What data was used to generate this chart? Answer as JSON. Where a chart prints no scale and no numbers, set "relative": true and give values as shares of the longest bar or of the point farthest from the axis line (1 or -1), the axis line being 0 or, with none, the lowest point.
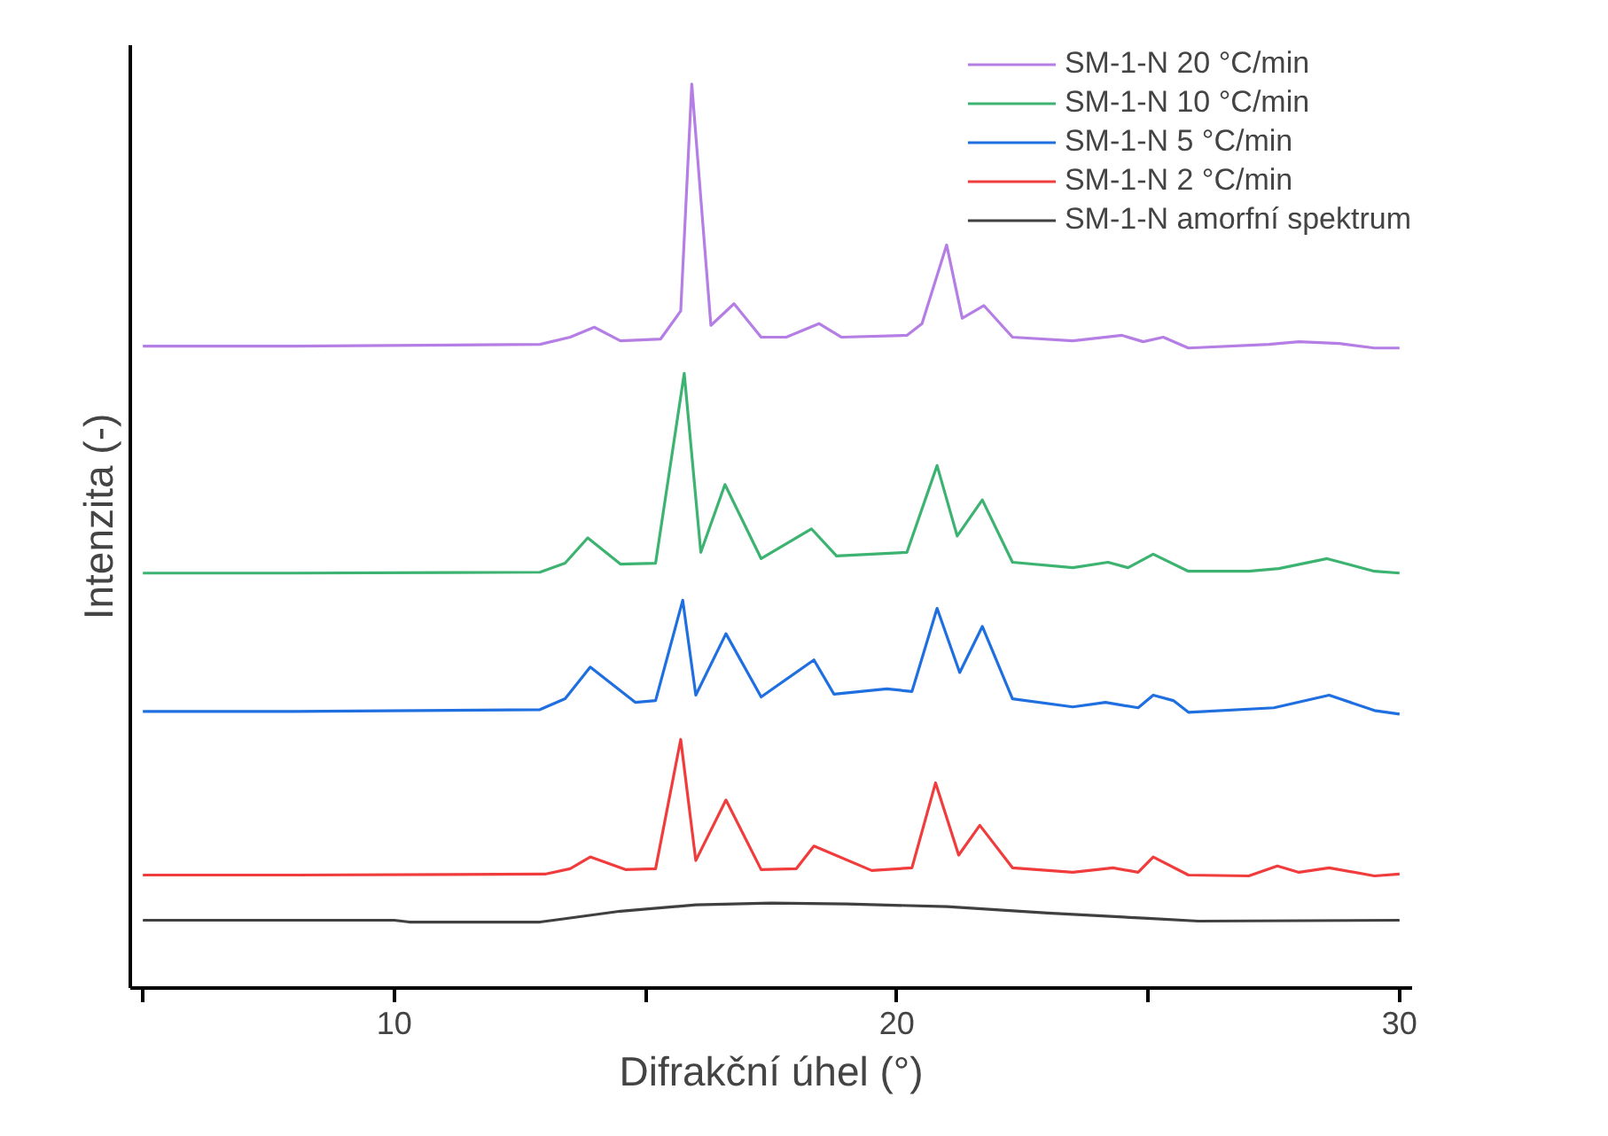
{
  "chart_data": {
    "type": "line",
    "xlabel": "Difrakční úhel (°)",
    "ylabel": "Intenzita (-)",
    "relative": true,
    "xlim": [
      4.75,
      30.25
    ],
    "xticks": [
      {
        "value": 5,
        "label": null
      },
      10,
      {
        "value": 15,
        "label": null
      },
      20,
      {
        "value": 25,
        "label": null
      },
      30
    ],
    "grid": false,
    "legend": "top right",
    "line_style": "solid",
    "marker": "none",
    "series": [
      {
        "name": "SM-1-N 20 °C/min",
        "color": "#b57ee4",
        "x": [
          5,
          8,
          12.9,
          13.5,
          13.98,
          14.5,
          15.3,
          15.7,
          15.92,
          16.3,
          16.76,
          17.3,
          17.8,
          18.45,
          18.9,
          20.2,
          20.5,
          20.99,
          21.3,
          21.73,
          22.3,
          23.5,
          24.48,
          24.9,
          25.3,
          25.8,
          27.4,
          28.0,
          28.8,
          29.5,
          30
        ],
        "values": [
          0.71,
          0.71,
          0.712,
          0.72,
          0.731,
          0.716,
          0.718,
          0.749,
          1.0,
          0.733,
          0.757,
          0.72,
          0.72,
          0.735,
          0.72,
          0.722,
          0.735,
          0.822,
          0.741,
          0.755,
          0.72,
          0.716,
          0.722,
          0.715,
          0.72,
          0.708,
          0.712,
          0.715,
          0.713,
          0.708,
          0.708
        ]
      },
      {
        "name": "SM-1-N 10 °C/min",
        "color": "#3cb371",
        "x": [
          5,
          8,
          12.9,
          13.4,
          13.85,
          14.5,
          15.2,
          15.77,
          16.1,
          16.58,
          17.3,
          18.3,
          18.8,
          19.5,
          20.2,
          20.8,
          21.2,
          21.7,
          22.3,
          23.5,
          24.2,
          24.6,
          25.1,
          25.8,
          27.0,
          27.6,
          28.56,
          29.5,
          30
        ],
        "values": [
          0.459,
          0.459,
          0.46,
          0.47,
          0.498,
          0.469,
          0.47,
          0.68,
          0.482,
          0.557,
          0.475,
          0.508,
          0.478,
          0.48,
          0.482,
          0.578,
          0.5,
          0.54,
          0.471,
          0.465,
          0.471,
          0.465,
          0.48,
          0.461,
          0.461,
          0.464,
          0.475,
          0.461,
          0.459
        ]
      },
      {
        "name": "SM-1-N 5 °C/min",
        "color": "#1f6fe0",
        "x": [
          5,
          8,
          12.9,
          13.4,
          13.9,
          14.8,
          15.2,
          15.74,
          16.0,
          16.6,
          17.3,
          18.35,
          18.75,
          19.8,
          20.3,
          20.8,
          21.25,
          21.7,
          22.3,
          23.5,
          24.15,
          24.8,
          25.1,
          25.5,
          25.8,
          27.5,
          28.6,
          29.5,
          30
        ],
        "values": [
          0.306,
          0.306,
          0.308,
          0.32,
          0.355,
          0.316,
          0.318,
          0.429,
          0.324,
          0.392,
          0.322,
          0.363,
          0.325,
          0.331,
          0.328,
          0.42,
          0.349,
          0.4,
          0.32,
          0.311,
          0.316,
          0.31,
          0.324,
          0.318,
          0.305,
          0.31,
          0.324,
          0.307,
          0.303
        ]
      },
      {
        "name": "SM-1-N 2 °C/min",
        "color": "#f03c3c",
        "x": [
          5,
          8,
          13.0,
          13.5,
          13.9,
          14.6,
          15.2,
          15.7,
          16.0,
          16.6,
          17.3,
          18.0,
          18.35,
          19.5,
          20.3,
          20.77,
          21.23,
          21.65,
          22.3,
          23.5,
          24.3,
          24.8,
          25.1,
          25.8,
          27.0,
          27.57,
          28.0,
          28.6,
          29.5,
          30
        ],
        "values": [
          0.125,
          0.125,
          0.126,
          0.132,
          0.145,
          0.131,
          0.132,
          0.275,
          0.141,
          0.208,
          0.131,
          0.132,
          0.157,
          0.13,
          0.133,
          0.227,
          0.147,
          0.18,
          0.133,
          0.128,
          0.133,
          0.128,
          0.145,
          0.125,
          0.124,
          0.135,
          0.128,
          0.133,
          0.124,
          0.126
        ]
      },
      {
        "name": "SM-1-N amorfní spektrum",
        "color": "#404040",
        "x": [
          5,
          10,
          10.3,
          12.9,
          13.3,
          14.5,
          16,
          17.5,
          19,
          21,
          23,
          25,
          26,
          30
        ],
        "values": [
          0.075,
          0.075,
          0.073,
          0.073,
          0.076,
          0.085,
          0.092,
          0.094,
          0.093,
          0.09,
          0.083,
          0.077,
          0.074,
          0.075
        ]
      }
    ]
  }
}
